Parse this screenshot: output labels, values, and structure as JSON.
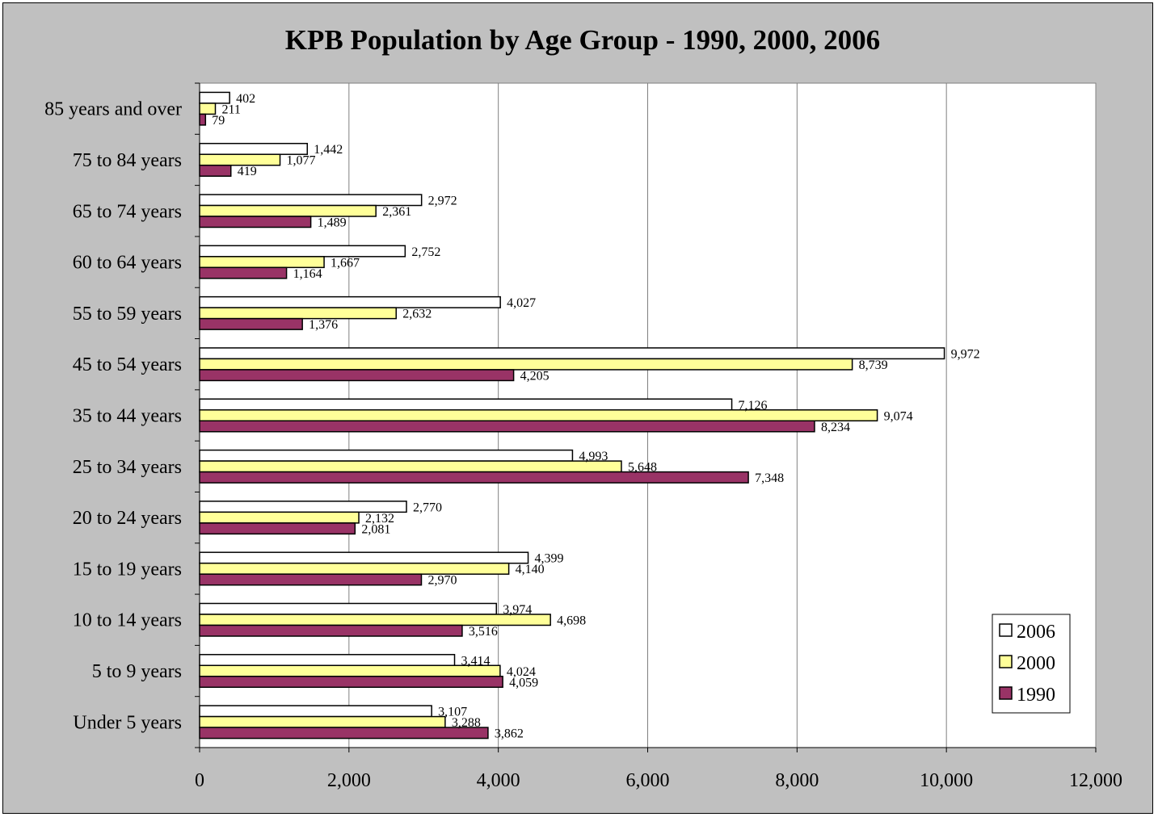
{
  "chart_data": {
    "type": "bar",
    "orientation": "horizontal",
    "title": "KPB Population by Age Group - 1990, 2000, 2006",
    "categories": [
      "85 years and over",
      "75 to 84 years",
      "65 to 74 years",
      "60 to 64 years",
      "55 to 59 years",
      "45 to 54 years",
      "35 to 44 years",
      "25 to 34 years",
      "20 to 24 years",
      "15 to 19 years",
      "10 to 14 years",
      "5 to 9 years",
      "Under 5 years"
    ],
    "series": [
      {
        "name": "2006",
        "color": "#ffffff",
        "values": [
          402,
          1442,
          2972,
          2752,
          4027,
          9972,
          7126,
          4993,
          2770,
          4399,
          3974,
          3414,
          3107
        ],
        "labels": [
          "402",
          "1,442",
          "2,972",
          "2,752",
          "4,027",
          "9,972",
          "7,126",
          "4,993",
          "2,770",
          "4,399",
          "3,974",
          "3,414",
          "3,107"
        ]
      },
      {
        "name": "2000",
        "color": "#ffff99",
        "values": [
          211,
          1077,
          2361,
          1667,
          2632,
          8739,
          9074,
          5648,
          2132,
          4140,
          4698,
          4024,
          3288
        ],
        "labels": [
          "211",
          "1,077",
          "2,361",
          "1,667",
          "2,632",
          "8,739",
          "9,074",
          "5,648",
          "2,132",
          "4,140",
          "4,698",
          "4,024",
          "3,288"
        ]
      },
      {
        "name": "1990",
        "color": "#993366",
        "values": [
          79,
          419,
          1489,
          1164,
          1376,
          4205,
          8234,
          7348,
          2081,
          2970,
          3516,
          4059,
          3862
        ],
        "labels": [
          "79",
          "419",
          "1,489",
          "1,164",
          "1,376",
          "4,205",
          "8,234",
          "7,348",
          "2,081",
          "2,970",
          "3,516",
          "4,059",
          "3,862"
        ]
      }
    ],
    "xlim": [
      0,
      12000
    ],
    "xticks": [
      "0",
      "2,000",
      "4,000",
      "6,000",
      "8,000",
      "10,000",
      "12,000"
    ],
    "grid": true,
    "legend_position": "bottom-right",
    "plot_background": "#ffffff",
    "chart_background": "#c0c0c0"
  }
}
